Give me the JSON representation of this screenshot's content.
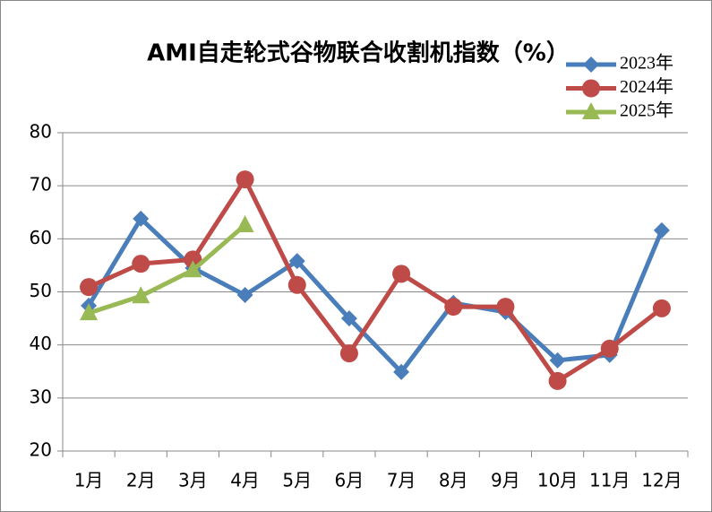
{
  "chart_data": {
    "type": "line",
    "title": "AMI自走轮式谷物联合收割机指数（%）",
    "categories": [
      "1月",
      "2月",
      "3月",
      "4月",
      "5月",
      "6月",
      "7月",
      "8月",
      "9月",
      "10月",
      "11月",
      "12月"
    ],
    "series": [
      {
        "name": "2023年",
        "color": "#4a7ebb",
        "marker": "diamond",
        "values": [
          47.4,
          63.8,
          54.5,
          49.4,
          55.8,
          45,
          34.9,
          47.9,
          46.2,
          37.1,
          38.1,
          61.6
        ]
      },
      {
        "name": "2024年",
        "color": "#be4b48",
        "marker": "circle",
        "values": [
          50.9,
          55.3,
          56.1,
          71.2,
          51.3,
          38.4,
          53.4,
          47.2,
          47.2,
          33.2,
          39.3,
          46.9
        ]
      },
      {
        "name": "2025年",
        "color": "#98b954",
        "marker": "triangle",
        "values": [
          46,
          49.2,
          54.1,
          62.6,
          null,
          null,
          null,
          null,
          null,
          null,
          null,
          null
        ]
      }
    ],
    "ylim": [
      20,
      80
    ],
    "yticks": [
      20,
      30,
      40,
      50,
      60,
      70,
      80
    ],
    "grid": true,
    "legend": "top-right"
  }
}
